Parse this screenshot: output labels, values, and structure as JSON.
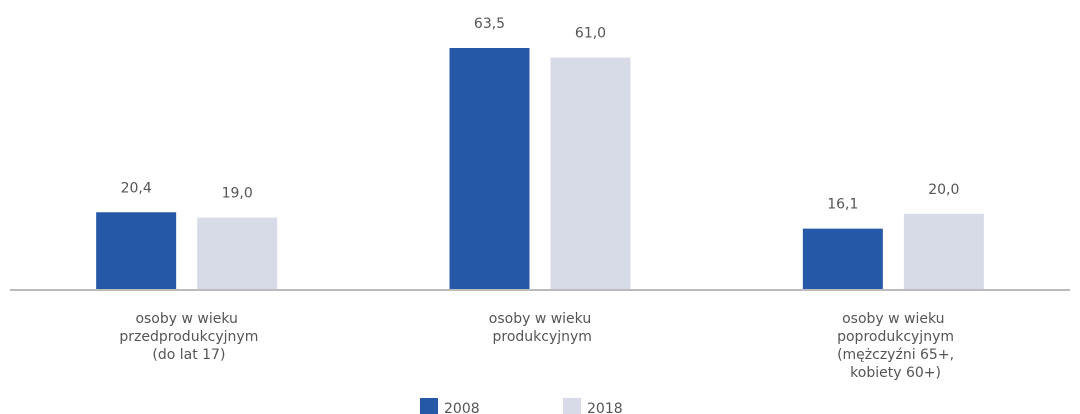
{
  "chart_data": {
    "type": "bar",
    "categories": [
      "osoby w wieku przedprodukcyjnym (do lat 17)",
      "osoby w wieku produkcyjnym",
      "osoby w wieku poprodukcyjnym (mężczyźni 65+, kobiety 60+)"
    ],
    "series": [
      {
        "name": "2008",
        "color": "#2559a7",
        "values": [
          20.4,
          63.5,
          16.1
        ],
        "value_labels": [
          "20,4",
          "63,5",
          "16,1"
        ]
      },
      {
        "name": "2018",
        "color": "#d7dbe7",
        "values": [
          19.0,
          61.0,
          20.0
        ],
        "value_labels": [
          "19,0",
          "61,0",
          "20,0"
        ]
      }
    ]
  }
}
